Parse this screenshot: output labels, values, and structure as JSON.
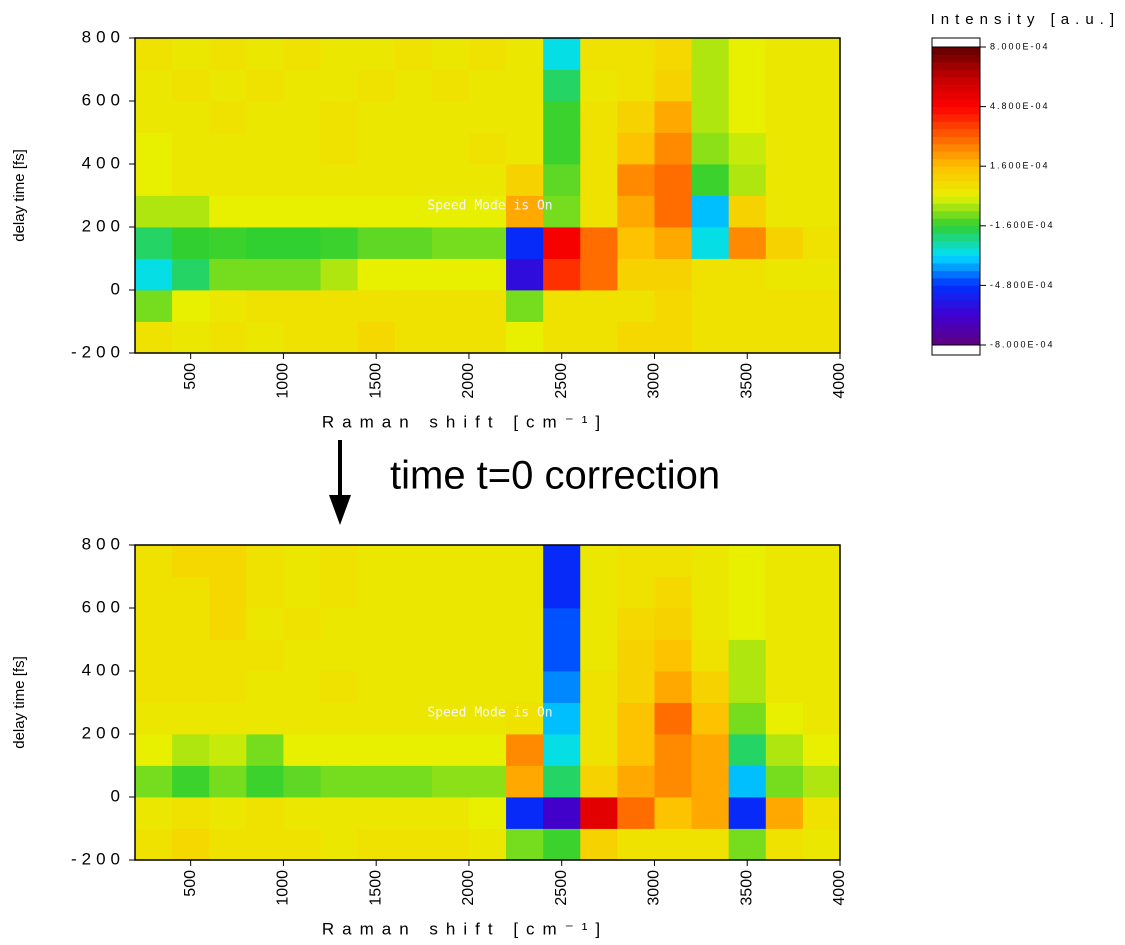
{
  "chart_data": [
    {
      "type": "heatmap",
      "x_label": "Raman shift [cm⁻¹]",
      "y_label": "delay time [fs]",
      "watermark": "Speed Mode is On",
      "xlim": [
        200,
        4000
      ],
      "ylim": [
        -200,
        800
      ],
      "xticks": [
        500,
        1000,
        1500,
        2000,
        2500,
        3000,
        3500,
        4000
      ],
      "yticks": [
        -200,
        0,
        200,
        400,
        600,
        800
      ],
      "xbins": [
        200,
        400,
        600,
        800,
        1000,
        1200,
        1400,
        1600,
        1800,
        2000,
        2200,
        2400,
        2600,
        2800,
        3000,
        3200,
        3400,
        3600,
        3800,
        4000
      ],
      "ybins": [
        -200,
        -100,
        0,
        100,
        200,
        300,
        400,
        500,
        600,
        700,
        800
      ],
      "z": [
        [
          5e-05,
          3e-05,
          5e-05,
          3e-05,
          5e-05,
          5e-05,
          8e-05,
          5e-05,
          5e-05,
          5e-05,
          0,
          5e-05,
          5e-05,
          8e-05,
          8e-05,
          5e-05,
          5e-05,
          5e-05,
          5e-05
        ],
        [
          -0.0001,
          0,
          3e-05,
          5e-05,
          5e-05,
          5e-05,
          5e-05,
          5e-05,
          5e-05,
          5e-05,
          -0.0001,
          5e-05,
          5e-05,
          5e-05,
          8e-05,
          5e-05,
          5e-05,
          5e-05,
          5e-05
        ],
        [
          -0.0003,
          -0.0002,
          -0.0001,
          -0.0001,
          -0.0001,
          -5e-05,
          0,
          0,
          0,
          0,
          -0.0006,
          0.0004,
          0.0003,
          0.0001,
          0.0001,
          5e-05,
          5e-05,
          3e-05,
          3e-05
        ],
        [
          -0.0002,
          -0.00016,
          -0.00015,
          -0.00016,
          -0.00016,
          -0.00015,
          -0.00012,
          -0.00012,
          -0.0001,
          -0.0001,
          -0.0005,
          0.0005,
          0.0003,
          0.00015,
          0.0002,
          -0.0003,
          0.00025,
          0.0001,
          5e-05
        ],
        [
          -5e-05,
          -5e-05,
          0,
          0,
          0,
          0,
          0,
          0,
          0,
          0,
          0.0002,
          -0.0001,
          5e-05,
          0.0002,
          0.0003,
          -0.00035,
          0.0001,
          3e-05,
          3e-05
        ],
        [
          0,
          3e-05,
          3e-05,
          3e-05,
          3e-05,
          3e-05,
          3e-05,
          3e-05,
          3e-05,
          3e-05,
          0.0001,
          -0.00012,
          5e-05,
          0.00025,
          0.0003,
          -0.00015,
          -5e-05,
          3e-05,
          3e-05
        ],
        [
          0,
          3e-05,
          3e-05,
          3e-05,
          3e-05,
          5e-05,
          3e-05,
          3e-05,
          3e-05,
          5e-05,
          3e-05,
          -0.00015,
          5e-05,
          0.00015,
          0.00025,
          -8e-05,
          -3e-05,
          3e-05,
          3e-05
        ],
        [
          3e-05,
          3e-05,
          5e-05,
          3e-05,
          3e-05,
          5e-05,
          3e-05,
          3e-05,
          3e-05,
          3e-05,
          3e-05,
          -0.00015,
          5e-05,
          0.0001,
          0.0002,
          -5e-05,
          0,
          3e-05,
          3e-05
        ],
        [
          3e-05,
          5e-05,
          3e-05,
          5e-05,
          3e-05,
          3e-05,
          5e-05,
          3e-05,
          5e-05,
          3e-05,
          3e-05,
          -0.0002,
          3e-05,
          5e-05,
          0.0001,
          -5e-05,
          0,
          3e-05,
          3e-05
        ],
        [
          5e-05,
          3e-05,
          5e-05,
          3e-05,
          5e-05,
          3e-05,
          3e-05,
          5e-05,
          3e-05,
          5e-05,
          3e-05,
          -0.0003,
          5e-05,
          5e-05,
          8e-05,
          -5e-05,
          0,
          3e-05,
          3e-05
        ]
      ]
    },
    {
      "type": "heatmap",
      "x_label": "Raman shift [cm⁻¹]",
      "y_label": "delay time [fs]",
      "watermark": "Speed Mode is On",
      "xlim": [
        200,
        4000
      ],
      "ylim": [
        -200,
        800
      ],
      "xticks": [
        500,
        1000,
        1500,
        2000,
        2500,
        3000,
        3500,
        4000
      ],
      "yticks": [
        -200,
        0,
        200,
        400,
        600,
        800
      ],
      "xbins": [
        200,
        400,
        600,
        800,
        1000,
        1200,
        1400,
        1600,
        1800,
        2000,
        2200,
        2400,
        2600,
        2800,
        3000,
        3200,
        3400,
        3600,
        3800,
        4000
      ],
      "ybins": [
        -200,
        -100,
        0,
        100,
        200,
        300,
        400,
        500,
        600,
        700,
        800
      ],
      "z": [
        [
          5e-05,
          8e-05,
          5e-05,
          5e-05,
          5e-05,
          3e-05,
          5e-05,
          5e-05,
          5e-05,
          3e-05,
          -0.0001,
          -0.00015,
          0.0001,
          5e-05,
          5e-05,
          5e-05,
          -0.0001,
          5e-05,
          3e-05
        ],
        [
          3e-05,
          5e-05,
          3e-05,
          5e-05,
          3e-05,
          3e-05,
          3e-05,
          3e-05,
          3e-05,
          0,
          -0.0005,
          -0.00065,
          0.00055,
          0.0003,
          0.00015,
          0.0002,
          -0.0005,
          0.0002,
          5e-05
        ],
        [
          -0.0001,
          -0.00015,
          -0.0001,
          -0.00015,
          -0.00012,
          -0.0001,
          -0.0001,
          -0.0001,
          -8e-05,
          -8e-05,
          0.0002,
          -0.0002,
          0.0001,
          0.0002,
          0.00025,
          0.0002,
          -0.00035,
          -0.0001,
          -5e-05
        ],
        [
          0,
          -5e-05,
          -3e-05,
          -0.0001,
          0,
          0,
          0,
          0,
          0,
          0,
          0.00025,
          -0.0003,
          5e-05,
          0.00015,
          0.00025,
          0.0002,
          -0.0002,
          -5e-05,
          0
        ],
        [
          3e-05,
          3e-05,
          3e-05,
          3e-05,
          3e-05,
          3e-05,
          3e-05,
          3e-05,
          3e-05,
          3e-05,
          5e-05,
          -0.00035,
          5e-05,
          0.00015,
          0.0003,
          0.00015,
          -0.0001,
          0,
          3e-05
        ],
        [
          5e-05,
          5e-05,
          5e-05,
          3e-05,
          3e-05,
          5e-05,
          3e-05,
          3e-05,
          3e-05,
          3e-05,
          3e-05,
          -0.0004,
          5e-05,
          0.0001,
          0.0002,
          0.0001,
          -5e-05,
          3e-05,
          3e-05
        ],
        [
          5e-05,
          5e-05,
          5e-05,
          5e-05,
          3e-05,
          3e-05,
          3e-05,
          3e-05,
          3e-05,
          3e-05,
          3e-05,
          -0.00045,
          3e-05,
          0.0001,
          0.00015,
          5e-05,
          -5e-05,
          3e-05,
          3e-05
        ],
        [
          5e-05,
          5e-05,
          8e-05,
          3e-05,
          5e-05,
          3e-05,
          3e-05,
          3e-05,
          3e-05,
          3e-05,
          3e-05,
          -0.00045,
          3e-05,
          8e-05,
          0.0001,
          3e-05,
          0,
          3e-05,
          3e-05
        ],
        [
          5e-05,
          5e-05,
          8e-05,
          5e-05,
          3e-05,
          5e-05,
          3e-05,
          3e-05,
          3e-05,
          3e-05,
          3e-05,
          -0.0005,
          3e-05,
          5e-05,
          8e-05,
          3e-05,
          0,
          3e-05,
          3e-05
        ],
        [
          5e-05,
          8e-05,
          8e-05,
          5e-05,
          3e-05,
          5e-05,
          3e-05,
          3e-05,
          3e-05,
          3e-05,
          3e-05,
          -0.0005,
          3e-05,
          5e-05,
          5e-05,
          3e-05,
          0,
          3e-05,
          3e-05
        ]
      ]
    }
  ],
  "colorbar": {
    "title": "Intensity [a.u.]",
    "zlim": [
      -0.0008,
      0.0008
    ],
    "colors": [
      "#600080",
      "#4000d0",
      "#0030ff",
      "#00e0ff",
      "#30d030",
      "#e8f000",
      "#ffc000",
      "#ff6000",
      "#ff0000",
      "#c00000",
      "#600000"
    ],
    "ticks": [
      {
        "value": 0.0008,
        "label": "8.000E-04"
      },
      {
        "value": 0.00048,
        "label": "4.800E-04"
      },
      {
        "value": 0.00016,
        "label": "1.600E-04"
      },
      {
        "value": -0.00016,
        "label": "-1.600E-04"
      },
      {
        "value": -0.00048,
        "label": "-4.800E-04"
      },
      {
        "value": -0.0008,
        "label": "-8.000E-04"
      }
    ]
  },
  "annotation": "time t=0 correction"
}
